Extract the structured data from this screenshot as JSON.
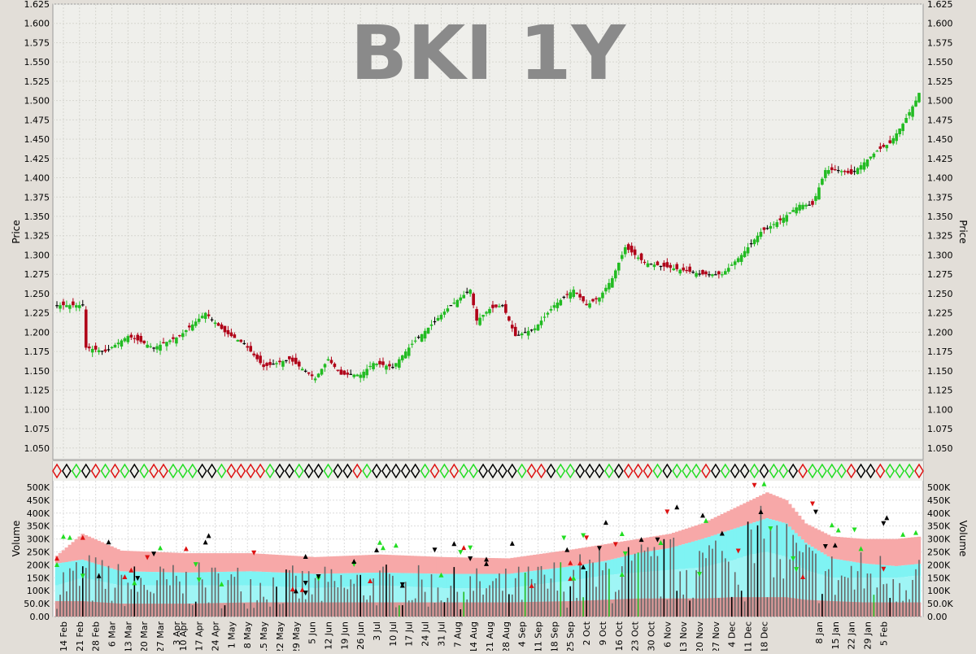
{
  "chart_data": {
    "title": "BKI 1Y",
    "price_panel": {
      "type": "ohlc-candlestick",
      "ylabel": "Price",
      "ylim": [
        1.035,
        1.625
      ],
      "yticks": [
        "1.050",
        "1.075",
        "1.100",
        "1.125",
        "1.150",
        "1.175",
        "1.200",
        "1.225",
        "1.250",
        "1.275",
        "1.300",
        "1.325",
        "1.350",
        "1.375",
        "1.400",
        "1.425",
        "1.450",
        "1.475",
        "1.500",
        "1.525",
        "1.550",
        "1.575",
        "1.600",
        "1.625"
      ],
      "grid": true,
      "colors": {
        "up": "#22bb22",
        "down": "#b00018",
        "unchanged": "#000000"
      },
      "close_path": [
        [
          0,
          1.235
        ],
        [
          8,
          1.235
        ],
        [
          9,
          1.18
        ],
        [
          15,
          1.175
        ],
        [
          22,
          1.195
        ],
        [
          30,
          1.18
        ],
        [
          38,
          1.195
        ],
        [
          46,
          1.225
        ],
        [
          52,
          1.2
        ],
        [
          58,
          1.185
        ],
        [
          64,
          1.155
        ],
        [
          72,
          1.165
        ],
        [
          80,
          1.14
        ],
        [
          84,
          1.165
        ],
        [
          88,
          1.145
        ],
        [
          94,
          1.145
        ],
        [
          98,
          1.16
        ],
        [
          104,
          1.155
        ],
        [
          110,
          1.185
        ],
        [
          116,
          1.21
        ],
        [
          122,
          1.235
        ],
        [
          128,
          1.255
        ],
        [
          130,
          1.215
        ],
        [
          134,
          1.23
        ],
        [
          138,
          1.235
        ],
        [
          142,
          1.195
        ],
        [
          148,
          1.205
        ],
        [
          154,
          1.235
        ],
        [
          160,
          1.255
        ],
        [
          164,
          1.235
        ],
        [
          168,
          1.245
        ],
        [
          172,
          1.27
        ],
        [
          176,
          1.31
        ],
        [
          182,
          1.29
        ],
        [
          188,
          1.285
        ],
        [
          194,
          1.28
        ],
        [
          200,
          1.275
        ],
        [
          206,
          1.275
        ],
        [
          212,
          1.3
        ],
        [
          218,
          1.33
        ],
        [
          224,
          1.345
        ],
        [
          230,
          1.365
        ],
        [
          234,
          1.365
        ],
        [
          238,
          1.41
        ],
        [
          242,
          1.41
        ],
        [
          246,
          1.405
        ],
        [
          250,
          1.42
        ],
        [
          254,
          1.435
        ],
        [
          258,
          1.445
        ],
        [
          262,
          1.47
        ],
        [
          266,
          1.5
        ],
        [
          268,
          1.52
        ]
      ]
    },
    "volume_panel": {
      "ylabel": "Volume",
      "ylim": [
        0,
        525000
      ],
      "yticks": [
        "0.00",
        "50.0K",
        "100K",
        "150K",
        "200K",
        "250K",
        "300K",
        "350K",
        "400K",
        "450K",
        "500K"
      ],
      "grid": true,
      "band_colors": {
        "outer": "#f7a8a8",
        "inner": "#7ff3f3",
        "base": "#d89898"
      },
      "band_path": {
        "x": [
          0,
          8,
          20,
          40,
          60,
          80,
          100,
          120,
          140,
          160,
          170,
          180,
          190,
          200,
          210,
          215,
          220,
          226,
          232,
          240,
          250,
          260,
          268
        ],
        "p": [
          60,
          60,
          50,
          50,
          55,
          55,
          55,
          55,
          55,
          60,
          65,
          70,
          70,
          70,
          75,
          75,
          75,
          75,
          65,
          60,
          55,
          55,
          55
        ],
        "c": [
          120,
          150,
          120,
          120,
          120,
          110,
          120,
          110,
          110,
          140,
          160,
          170,
          180,
          190,
          220,
          240,
          250,
          230,
          180,
          150,
          150,
          150,
          160
        ],
        "b": [
          205,
          220,
          175,
          170,
          175,
          165,
          170,
          165,
          165,
          195,
          215,
          245,
          265,
          300,
          340,
          360,
          380,
          360,
          285,
          225,
          205,
          195,
          205
        ],
        "t": [
          235,
          320,
          255,
          245,
          245,
          230,
          240,
          230,
          225,
          260,
          280,
          300,
          320,
          360,
          420,
          450,
          480,
          450,
          360,
          310,
          300,
          300,
          310
        ]
      }
    },
    "x_axis": {
      "date_labels": [
        "14 Feb",
        "21 Feb",
        "28 Feb",
        "6 Mar",
        "13 Mar",
        "20 Mar",
        "27 Mar",
        "3 Apr",
        "10 Apr",
        "17 Apr",
        "24 Apr",
        "1 May",
        "8 May",
        "15 May",
        "22 May",
        "29 May",
        "5 Jun",
        "12 Jun",
        "19 Jun",
        "26 Jun",
        "3 Jul",
        "10 Jul",
        "17 Jul",
        "24 Jul",
        "31 Jul",
        "7 Aug",
        "14 Aug",
        "21 Aug",
        "28 Aug",
        "4 Sep",
        "11 Sep",
        "18 Sep",
        "25 Sep",
        "2 Oct",
        "9 Oct",
        "16 Oct",
        "23 Oct",
        "30 Oct",
        "6 Nov",
        "13 Nov",
        "20 Nov",
        "27 Nov",
        "4 Dec",
        "11 Dec",
        "18 Dec",
        "8 Jan",
        "15 Jan",
        "22 Jan",
        "29 Jan",
        "5 Feb"
      ],
      "label_trading_day": [
        2,
        7,
        12,
        17,
        22,
        27,
        32,
        37,
        39,
        44,
        49,
        54,
        59,
        64,
        69,
        74,
        79,
        84,
        89,
        94,
        99,
        104,
        109,
        114,
        119,
        124,
        129,
        134,
        139,
        144,
        149,
        154,
        159,
        164,
        169,
        174,
        179,
        184,
        189,
        194,
        199,
        204,
        209,
        214,
        219,
        236,
        241,
        246,
        251,
        256
      ],
      "trading_days": 268
    }
  }
}
